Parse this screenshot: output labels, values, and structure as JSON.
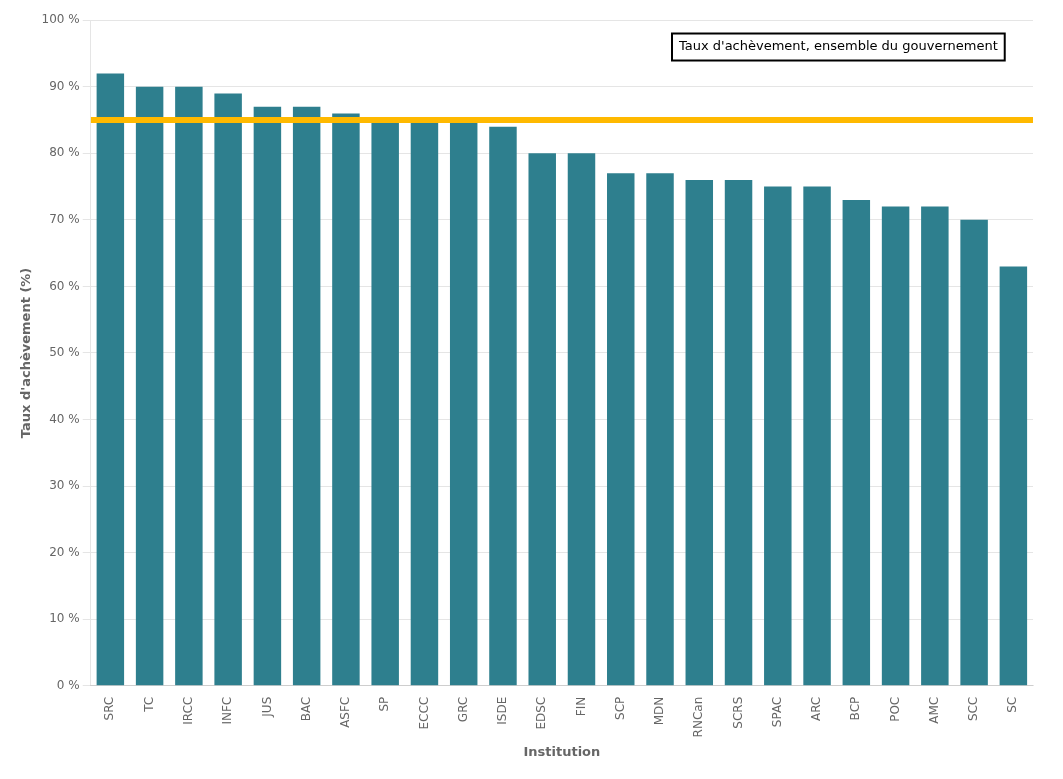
{
  "chart_data": {
    "type": "bar",
    "categories": [
      "SRC",
      "TC",
      "IRCC",
      "INFC",
      "JUS",
      "BAC",
      "ASFC",
      "SP",
      "ECCC",
      "GRC",
      "ISDE",
      "EDSC",
      "FIN",
      "SCP",
      "MDN",
      "RNCan",
      "SCRS",
      "SPAC",
      "ARC",
      "BCP",
      "POC",
      "AMC",
      "SCC",
      "SC"
    ],
    "values": [
      92,
      90,
      90,
      89,
      87,
      87,
      86,
      85,
      85,
      85,
      84,
      80,
      80,
      77,
      77,
      76,
      76,
      75,
      75,
      73,
      72,
      72,
      70,
      63
    ],
    "color": "#2E7F8E",
    "xlabel": "Institution",
    "ylabel": "Taux d'achèvement (%)",
    "ylim": [
      0,
      100
    ],
    "yticks": [
      {
        "value": 0,
        "label": "0 %"
      },
      {
        "value": 10,
        "label": "10 %"
      },
      {
        "value": 20,
        "label": "20 %"
      },
      {
        "value": 30,
        "label": "30 %"
      },
      {
        "value": 40,
        "label": "40 %"
      },
      {
        "value": 50,
        "label": "50 %"
      },
      {
        "value": 60,
        "label": "60 %"
      },
      {
        "value": 70,
        "label": "70 %"
      },
      {
        "value": 80,
        "label": "80 %"
      },
      {
        "value": 90,
        "label": "90 %"
      },
      {
        "value": 100,
        "label": "100 %"
      }
    ],
    "grid": true,
    "reference_line": {
      "value": 85,
      "label": "Taux d'achèvement, ensemble du gouvernement",
      "color": "#FFB900"
    }
  }
}
